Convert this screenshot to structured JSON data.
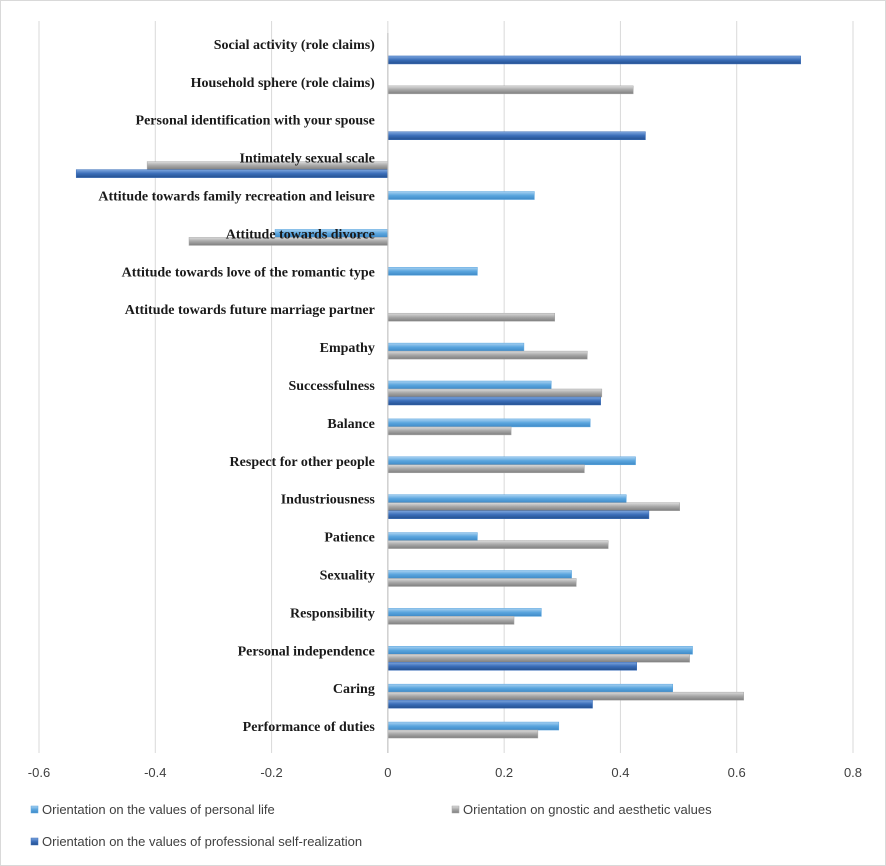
{
  "chart_data": {
    "type": "bar",
    "orientation": "horizontal",
    "categories": [
      "Social activity (role claims)",
      "Household sphere (role claims)",
      "Personal identification with your spouse",
      "Intimately sexual scale",
      "Attitude towards family recreation and leisure",
      "Attitude towards divorce",
      "Attitude towards love of the romantic type",
      "Attitude towards future marriage partner",
      "Empathy",
      "Successfulness",
      "Balance",
      "Respect for other people",
      "Industriousness",
      "Patience",
      "Sexuality",
      "Responsibility",
      "Personal independence",
      "Caring",
      "Performance of duties"
    ],
    "series": [
      {
        "name": "Orientation on the values of personal life",
        "color": "#5aa5de",
        "values": [
          null,
          null,
          null,
          null,
          0.252,
          -0.194,
          0.154,
          null,
          0.234,
          0.281,
          0.348,
          0.426,
          0.41,
          0.154,
          0.316,
          0.264,
          0.524,
          0.49,
          0.294
        ]
      },
      {
        "name": "Orientation on gnostic and aesthetic values",
        "color": "#a6a6a6",
        "values": [
          null,
          0.422,
          null,
          -0.414,
          null,
          -0.342,
          null,
          0.287,
          0.343,
          0.368,
          0.212,
          0.338,
          0.502,
          0.379,
          0.324,
          0.217,
          0.519,
          0.612,
          0.258
        ]
      },
      {
        "name": "Orientation on the values of professional self-realization",
        "color": "#3a6db8",
        "values": [
          0.71,
          null,
          0.443,
          -0.536,
          null,
          null,
          null,
          null,
          null,
          0.366,
          null,
          null,
          0.449,
          null,
          null,
          null,
          0.428,
          0.352,
          null
        ]
      }
    ],
    "xlim": [
      -0.6,
      0.8
    ],
    "xticks": [
      "-0.6",
      "-0.4",
      "-0.2",
      "0",
      "0.2",
      "0.4",
      "0.6",
      "0.8"
    ],
    "grid": true,
    "legend_position": "bottom"
  }
}
